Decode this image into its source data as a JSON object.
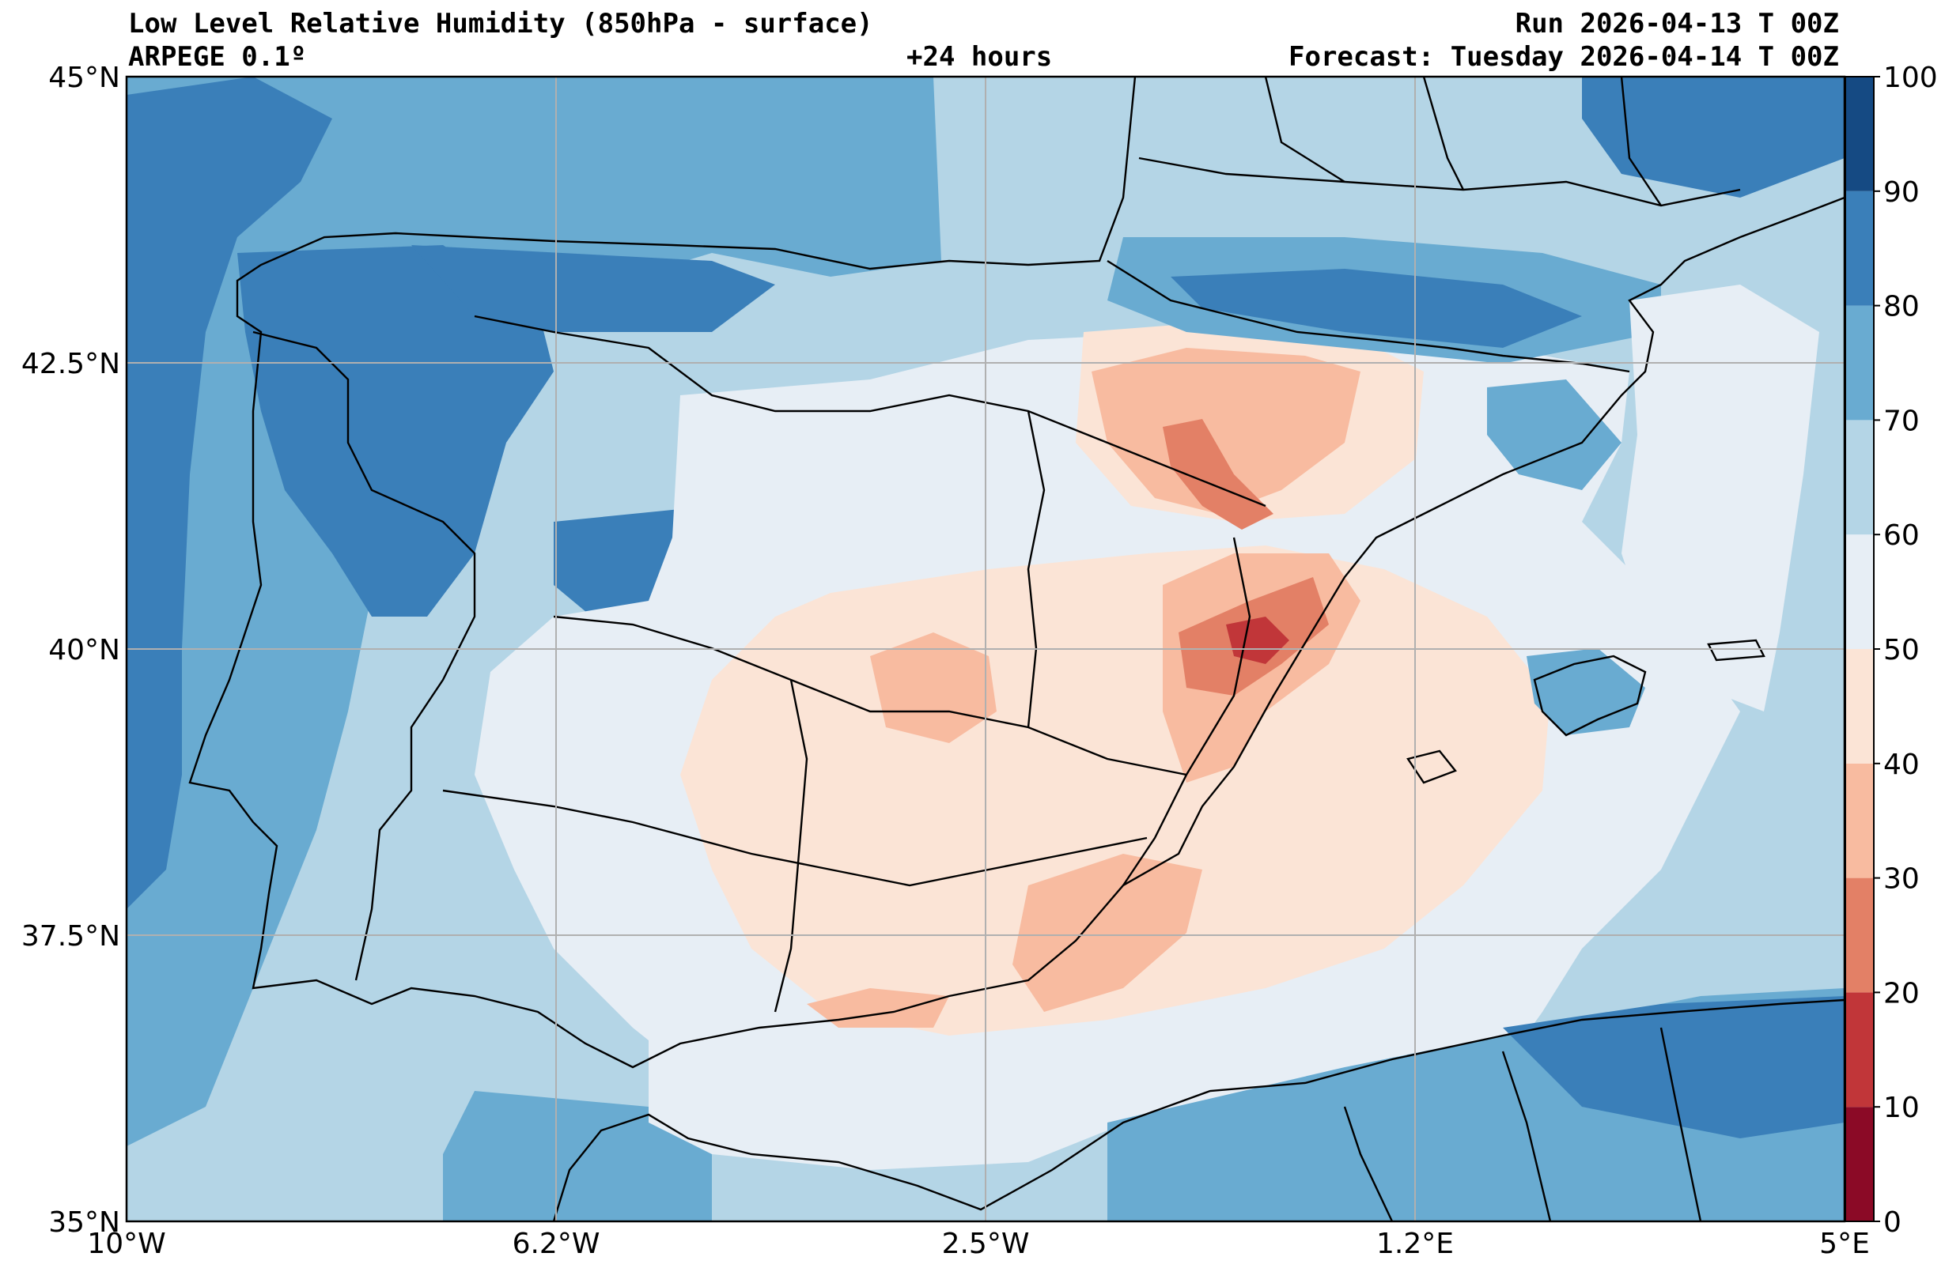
{
  "header": {
    "title": "Low Level Relative Humidity (850hPa - surface)",
    "model": "ARPEGE 0.1º",
    "lead": "+24 hours",
    "run": "Run 2026-04-13 T 00Z",
    "forecast": "Forecast: Tuesday 2026-04-14 T 00Z"
  },
  "map": {
    "lon_ticks": [
      "10°W",
      "6.2°W",
      "2.5°W",
      "1.2°E",
      "5°E"
    ],
    "lat_ticks": [
      "45°N",
      "42.5°N",
      "40°N",
      "37.5°N",
      "35°N"
    ],
    "lon_range": [
      -10,
      5
    ],
    "lat_range": [
      35,
      45
    ],
    "grid": true
  },
  "colorbar": {
    "levels": [
      "0",
      "10",
      "20",
      "30",
      "40",
      "50",
      "60",
      "70",
      "80",
      "90",
      "100"
    ],
    "colors": [
      "#8b0a26",
      "#c13639",
      "#e38066",
      "#f8bba0",
      "#fbe4d6",
      "#e7eef5",
      "#b4d5e6",
      "#69abd1",
      "#3a7fb9",
      "#154a83"
    ]
  }
}
